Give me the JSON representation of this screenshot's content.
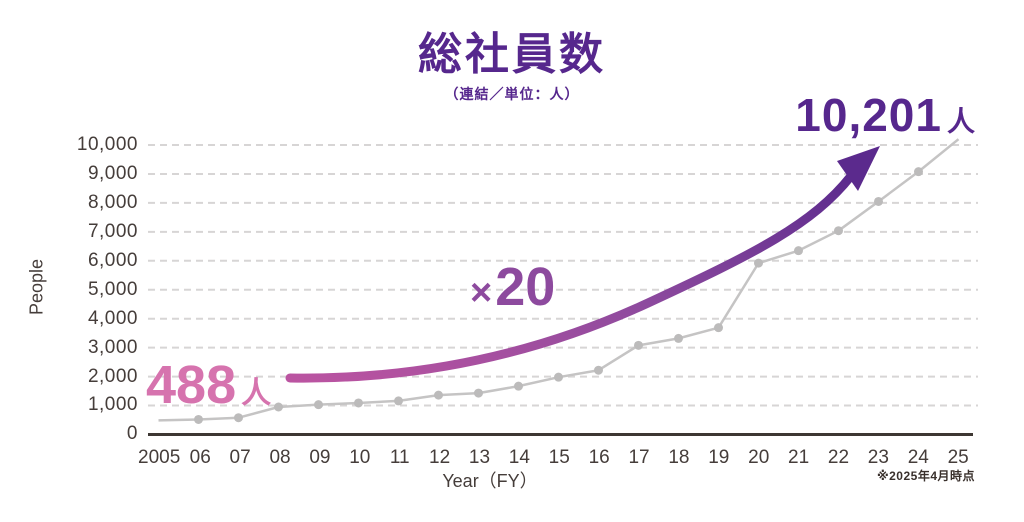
{
  "chart_data": {
    "type": "line",
    "title": "総社員数",
    "subtitle": "（連結／単位：人）",
    "x": [
      2005,
      2006,
      2007,
      2008,
      2009,
      2010,
      2011,
      2012,
      2013,
      2014,
      2015,
      2016,
      2017,
      2018,
      2019,
      2020,
      2021,
      2022,
      2023,
      2024,
      2025
    ],
    "x_tick_labels": [
      "2005",
      "06",
      "07",
      "08",
      "09",
      "10",
      "11",
      "12",
      "13",
      "14",
      "15",
      "16",
      "17",
      "18",
      "19",
      "20",
      "21",
      "22",
      "23",
      "24",
      "25"
    ],
    "values": [
      488,
      520,
      580,
      950,
      1030,
      1090,
      1160,
      1360,
      1430,
      1670,
      1980,
      2220,
      3080,
      3320,
      3690,
      5920,
      6350,
      7040,
      8050,
      9080,
      10201
    ],
    "xlabel": "Year（FY）",
    "ylabel": "People",
    "ylim": [
      0,
      10000
    ],
    "y_tick_step": 1000,
    "y_tick_labels": [
      "10,000",
      "9,000",
      "8,000",
      "7,000",
      "6,000",
      "5,000",
      "4,000",
      "3,000",
      "2,000",
      "1,000",
      "0"
    ],
    "grid": "horizontal-dashed",
    "legend": "none",
    "annotations": {
      "start": {
        "value": "488",
        "unit": "人"
      },
      "growth": {
        "sign": "×",
        "value": "20"
      },
      "end": {
        "value": "10,201",
        "unit": "人"
      }
    },
    "footnote": "※2025年4月時点",
    "colors": {
      "title_purple": "#56278d",
      "growth_purple": "#8d4a9e",
      "start_pink": "#d673ae",
      "arrow_gradient_start": "#bb54a1",
      "arrow_gradient_end": "#5b2a8d",
      "series_line_gray": "#c5c4c4",
      "marker_gray": "#bcbbbb",
      "axis_text": "#453d3a"
    }
  }
}
